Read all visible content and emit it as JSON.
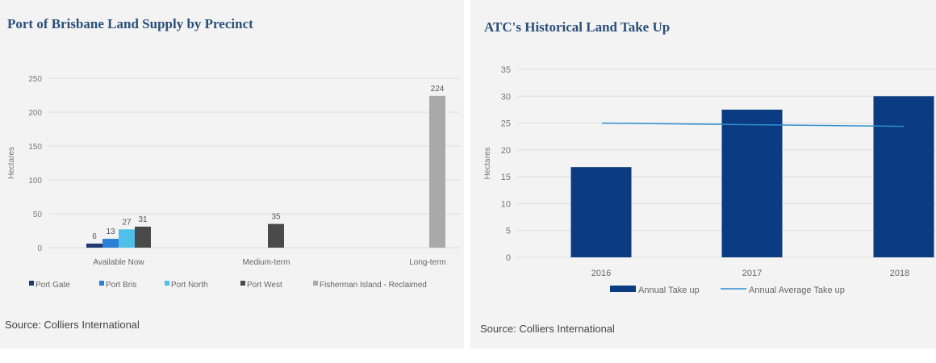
{
  "left": {
    "title": "Port of Brisbane Land Supply by Precinct",
    "source": "Source: Colliers International",
    "colors": {
      "port_gate": "#1f3a73",
      "port_bris": "#2b7fd4",
      "port_north": "#4fc0ea",
      "port_west": "#4a4a4a",
      "fisherman_island": "#a9a9a9"
    },
    "chart_data": {
      "type": "bar",
      "categories": [
        "Available Now",
        "Medium-term",
        "Long-term"
      ],
      "series": [
        {
          "name": "Port Gate",
          "values": [
            6,
            null,
            null
          ]
        },
        {
          "name": "Port Bris",
          "values": [
            13,
            null,
            null
          ]
        },
        {
          "name": "Port North",
          "values": [
            27,
            null,
            null
          ]
        },
        {
          "name": "Port West",
          "values": [
            31,
            35,
            null
          ]
        },
        {
          "name": "Fisherman Island - Reclaimed",
          "values": [
            null,
            null,
            224
          ]
        }
      ],
      "ylabel": "Hectares",
      "ylim": [
        0,
        250
      ],
      "yticks": [
        0,
        50,
        100,
        150,
        200,
        250
      ],
      "grid": true,
      "legend": "bottom"
    }
  },
  "right": {
    "title": "ATC's Historical Land Take Up",
    "source": "Source: Colliers International",
    "colors": {
      "annual_take_up": "#0b3b80",
      "annual_average": "#2e8fcf"
    },
    "chart_data": {
      "type": "bar",
      "categories": [
        "2016",
        "2017",
        "2018"
      ],
      "series": [
        {
          "name": "Annual Take up",
          "type": "bar",
          "values": [
            16.8,
            27.5,
            30
          ]
        },
        {
          "name": "Annual Average Take up",
          "type": "line",
          "values": [
            25,
            24.7,
            24.4
          ]
        }
      ],
      "ylabel": "Hectares",
      "ylim": [
        0,
        35
      ],
      "yticks": [
        0,
        5,
        10,
        15,
        20,
        25,
        30,
        35
      ],
      "grid": true,
      "legend": "bottom"
    }
  }
}
